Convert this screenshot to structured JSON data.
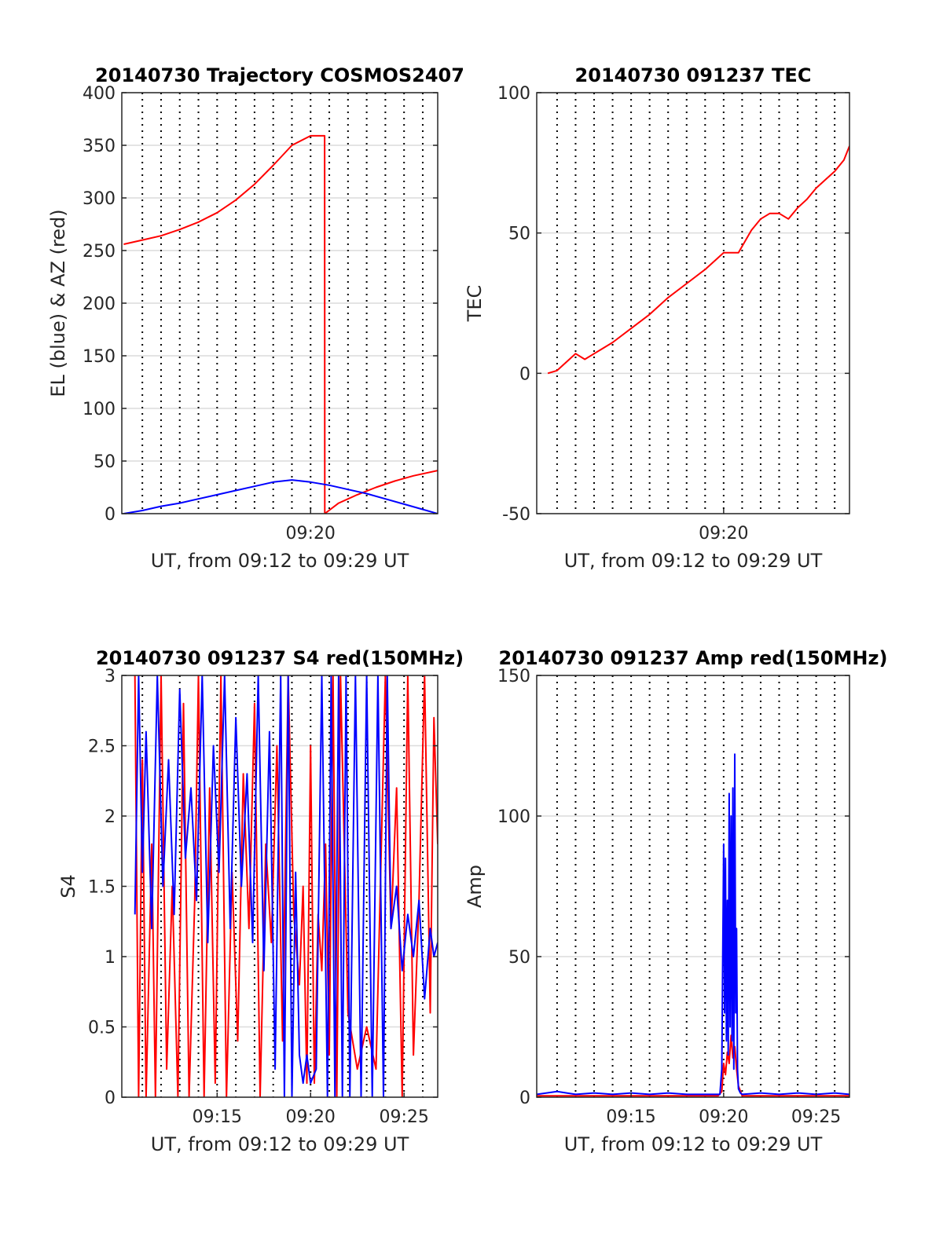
{
  "chart_data": [
    {
      "type": "line",
      "title": "20140730 Trajectory COSMOS2407",
      "xlabel": "UT, from 09:12 to 09:29 UT",
      "ylabel": "EL (blue) & AZ (red)",
      "xlim": [
        9.9,
        26.8
      ],
      "ylim": [
        0,
        400
      ],
      "yticks": [
        0,
        50,
        100,
        150,
        200,
        250,
        300,
        350,
        400
      ],
      "xticks": [
        {
          "v": 20,
          "label": "09:20"
        }
      ],
      "vgrid_minutes": [
        11,
        12,
        13,
        14,
        15,
        16,
        17,
        18,
        19,
        20,
        21,
        22,
        23,
        24,
        25,
        26
      ],
      "grid": true,
      "series": [
        {
          "color": "#ff0000",
          "x": [
            10.0,
            11.0,
            12.0,
            13.0,
            14.0,
            15.0,
            16.0,
            17.0,
            18.0,
            19.0,
            20.0,
            20.75,
            20.76,
            21.5,
            22.5,
            23.5,
            24.5,
            25.5,
            26.8
          ],
          "y": [
            256,
            260,
            264,
            270,
            277,
            286,
            298,
            313,
            331,
            350,
            359,
            359,
            0,
            10,
            18,
            25,
            31,
            36,
            41
          ]
        },
        {
          "color": "#0000ff",
          "x": [
            10.0,
            11.0,
            12.0,
            13.0,
            14.0,
            15.0,
            16.0,
            17.0,
            18.0,
            19.0,
            20.0,
            21.0,
            22.0,
            23.0,
            24.0,
            25.0,
            26.0,
            26.8
          ],
          "y": [
            0,
            3,
            7,
            10,
            14,
            18,
            22,
            26,
            30,
            32,
            30,
            27,
            23,
            19,
            14,
            9,
            4,
            0
          ]
        }
      ]
    },
    {
      "type": "line",
      "title": "20140730 091237 TEC",
      "xlabel": "UT, from 09:12 to 09:29 UT",
      "ylabel": "TEC",
      "xlim": [
        9.9,
        26.8
      ],
      "ylim": [
        -50,
        100
      ],
      "yticks": [
        -50,
        0,
        50,
        100
      ],
      "xticks": [
        {
          "v": 20,
          "label": "09:20"
        }
      ],
      "vgrid_minutes": [
        11,
        12,
        13,
        14,
        15,
        16,
        17,
        18,
        19,
        20,
        21,
        22,
        23,
        24,
        25,
        26
      ],
      "grid": true,
      "series": [
        {
          "color": "#ff0000",
          "x": [
            10.5,
            11.0,
            11.5,
            12.0,
            12.5,
            13.0,
            14.0,
            15.0,
            16.0,
            17.0,
            18.0,
            19.0,
            20.0,
            20.8,
            21.5,
            22.0,
            22.5,
            23.0,
            23.5,
            24.0,
            24.5,
            25.0,
            25.5,
            26.0,
            26.5,
            26.8
          ],
          "y": [
            0,
            1,
            4,
            7,
            5,
            7,
            11,
            16,
            21,
            27,
            32,
            37,
            43,
            43,
            51,
            55,
            57,
            57,
            55,
            59,
            62,
            66,
            69,
            72,
            76,
            81
          ]
        }
      ]
    },
    {
      "type": "line",
      "title": "20140730 091237 S4 red(150MHz)",
      "xlabel": "UT, from 09:12 to 09:29 UT",
      "ylabel": "S4",
      "xlim": [
        9.9,
        26.8
      ],
      "ylim": [
        0,
        3
      ],
      "yticks": [
        0,
        0.5,
        1,
        1.5,
        2,
        2.5,
        3
      ],
      "xticks": [
        {
          "v": 15,
          "label": "09:15"
        },
        {
          "v": 20,
          "label": "09:20"
        },
        {
          "v": 25,
          "label": "09:25"
        }
      ],
      "vgrid_minutes": [
        11,
        12,
        13,
        14,
        15,
        16,
        17,
        18,
        19,
        20,
        21,
        22,
        23,
        24,
        25,
        26
      ],
      "grid": true,
      "series": [
        {
          "color": "#ff0000",
          "x": [
            10.6,
            10.8,
            11.0,
            11.2,
            11.5,
            11.7,
            12.0,
            12.3,
            12.6,
            12.9,
            13.2,
            13.5,
            13.8,
            14.0,
            14.3,
            14.6,
            14.9,
            15.2,
            15.5,
            15.8,
            16.1,
            16.4,
            16.7,
            17.0,
            17.3,
            17.6,
            17.9,
            18.2,
            18.5,
            18.8,
            19.1,
            19.4,
            19.6,
            19.8,
            20.0,
            20.2,
            20.4,
            20.6,
            20.8,
            21.0,
            21.2,
            21.4,
            21.6,
            22.0,
            22.5,
            23.0,
            23.5,
            24.0,
            24.3,
            24.6,
            24.9,
            25.2,
            25.5,
            25.8,
            26.1,
            26.4,
            26.6,
            26.8
          ],
          "y": [
            3,
            0,
            2.4,
            0,
            1.8,
            0,
            3,
            0.2,
            1.5,
            0,
            2.8,
            0,
            1.4,
            3,
            0,
            2.2,
            0.1,
            3,
            0,
            1.6,
            0.4,
            2.3,
            1.2,
            2.8,
            0,
            1.8,
            1.1,
            2.5,
            0.4,
            3,
            1.3,
            0.8,
            1.5,
            0.1,
            2.5,
            0.1,
            1.3,
            0.9,
            1.8,
            0.3,
            3,
            0,
            3,
            0.6,
            0.2,
            0.5,
            0.2,
            3,
            1.2,
            2.2,
            0,
            3,
            0.3,
            1.4,
            3,
            0.6,
            2.7,
            1.8
          ]
        },
        {
          "color": "#0000ff",
          "x": [
            10.6,
            10.8,
            11.0,
            11.2,
            11.5,
            11.8,
            12.1,
            12.4,
            12.7,
            13.0,
            13.3,
            13.6,
            13.9,
            14.2,
            14.5,
            14.8,
            15.1,
            15.4,
            15.7,
            16.0,
            16.3,
            16.6,
            16.9,
            17.2,
            17.5,
            17.8,
            18.1,
            18.4,
            18.6,
            18.8,
            19.0,
            19.2,
            19.4,
            19.6,
            19.8,
            20.0,
            20.3,
            20.6,
            20.9,
            21.1,
            21.3,
            21.5,
            21.7,
            21.9,
            22.1,
            22.4,
            22.7,
            23.0,
            23.3,
            23.6,
            23.9,
            24.1,
            24.3,
            24.6,
            24.9,
            25.2,
            25.5,
            25.8,
            26.1,
            26.4,
            26.6,
            26.8
          ],
          "y": [
            1.3,
            3,
            1.6,
            2.6,
            1.2,
            3,
            1.5,
            2.4,
            1.3,
            2.9,
            1.7,
            2.2,
            1.4,
            3,
            1.1,
            2.5,
            1.6,
            3,
            1.2,
            2.7,
            1.5,
            2.3,
            1.1,
            3,
            0.9,
            2.6,
            0.2,
            3,
            0,
            3,
            0,
            1.6,
            0.3,
            0.1,
            0.3,
            0.1,
            0.2,
            3,
            0,
            3,
            0,
            3,
            0,
            3,
            0,
            3,
            0,
            3,
            0,
            3,
            0,
            3,
            1.2,
            1.5,
            0.9,
            1.3,
            1.0,
            1.4,
            0.7,
            1.2,
            1.0,
            1.1
          ]
        }
      ]
    },
    {
      "type": "line",
      "title": "20140730 091237 Amp red(150MHz)",
      "xlabel": "UT, from 09:12 to 09:29 UT",
      "ylabel": "Amp",
      "xlim": [
        9.9,
        26.8
      ],
      "ylim": [
        0,
        150
      ],
      "yticks": [
        0,
        50,
        100,
        150
      ],
      "xticks": [
        {
          "v": 15,
          "label": "09:15"
        },
        {
          "v": 20,
          "label": "09:20"
        },
        {
          "v": 25,
          "label": "09:25"
        }
      ],
      "vgrid_minutes": [
        11,
        12,
        13,
        14,
        15,
        16,
        17,
        18,
        19,
        20,
        21,
        22,
        23,
        24,
        25,
        26
      ],
      "grid": true,
      "series": [
        {
          "color": "#ff0000",
          "x": [
            9.9,
            19.7,
            19.9,
            20.0,
            20.1,
            20.2,
            20.3,
            20.4,
            20.5,
            20.6,
            20.7,
            20.8,
            21.0,
            26.8
          ],
          "y": [
            0.5,
            0.5,
            2,
            12,
            8,
            16,
            12,
            22,
            14,
            18,
            10,
            4,
            0.5,
            0.5
          ]
        },
        {
          "color": "#0000ff",
          "x": [
            9.9,
            11.0,
            12.0,
            13.0,
            14.0,
            15.0,
            16.0,
            17.0,
            18.0,
            19.0,
            19.8,
            19.9,
            20.0,
            20.05,
            20.1,
            20.15,
            20.2,
            20.25,
            20.3,
            20.35,
            20.4,
            20.45,
            20.5,
            20.55,
            20.6,
            20.65,
            20.7,
            20.75,
            20.8,
            20.9,
            21.0,
            22.0,
            23.0,
            24.0,
            25.0,
            26.0,
            26.8
          ],
          "y": [
            1,
            2,
            1,
            1.5,
            1,
            1.5,
            1,
            1.5,
            1,
            1,
            1,
            10,
            90,
            30,
            85,
            20,
            70,
            15,
            108,
            25,
            100,
            20,
            110,
            10,
            122,
            30,
            60,
            10,
            3,
            1.5,
            1,
            1.5,
            1,
            1.5,
            1,
            1.5,
            1
          ]
        }
      ]
    }
  ]
}
